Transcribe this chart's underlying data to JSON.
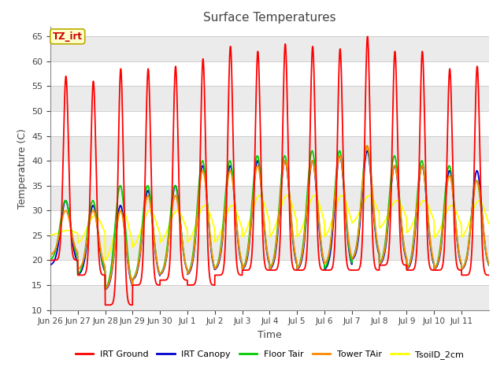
{
  "title": "Surface Temperatures",
  "ylabel": "Temperature (C)",
  "xlabel": "Time",
  "annotation_text": "TZ_irt",
  "annotation_bg": "#FFFFCC",
  "annotation_border": "#BBAA00",
  "annotation_text_color": "#CC0000",
  "ylim": [
    10,
    67
  ],
  "yticks": [
    10,
    15,
    20,
    25,
    30,
    35,
    40,
    45,
    50,
    55,
    60,
    65
  ],
  "fig_bg": "#FFFFFF",
  "plot_bg": "#FFFFFF",
  "grid_color": "#DDDDDD",
  "series_colors": {
    "IRT Ground": "#FF0000",
    "IRT Canopy": "#0000CC",
    "Floor Tair": "#00CC00",
    "Tower TAir": "#FF8800",
    "TsoilD_2cm": "#FFFF00"
  },
  "xtick_labels": [
    "Jun 26",
    "Jun 27",
    "Jun 28",
    "Jun 29",
    "Jun 30",
    "Jul 1",
    "Jul 2",
    "Jul 3",
    "Jul 4",
    "Jul 5",
    "Jul 6",
    "Jul 7",
    "Jul 8",
    "Jul 9",
    "Jul 10",
    "Jul 11"
  ],
  "n_days": 16,
  "pts_per_day": 144
}
